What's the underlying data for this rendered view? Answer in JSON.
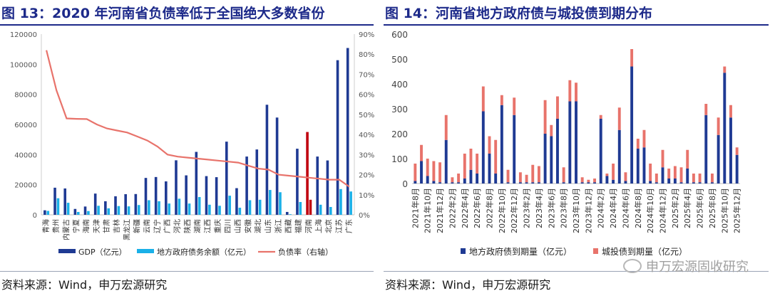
{
  "left_panel": {
    "title": "图 13：2020 年河南省负债率低于全国绝大多数省份",
    "source": "资料来源：Wind，申万宏源研究"
  },
  "right_panel": {
    "title": "图 14：河南省地方政府债与城投债到期分布",
    "source": "资料来源：Wind，申万宏源研究",
    "watermark": "申万宏源固收研究"
  },
  "colors": {
    "title": "#1d2a8a",
    "gdp": "#1f3a93",
    "debt": "#1ab0e8",
    "ratio": "#e8736b",
    "highlight": "#c0000f",
    "local": "#1f3a93",
    "chengtou": "#e8736b"
  },
  "chart_data": [
    {
      "type": "bar",
      "categories": [
        "青海",
        "贵州",
        "内蒙古",
        "宁夏",
        "海南",
        "天津",
        "甘肃",
        "吉林",
        "黑龙江",
        "新疆",
        "云南",
        "辽宁",
        "广西",
        "河北",
        "陕西",
        "湖南",
        "江西",
        "重庆",
        "四川",
        "山西",
        "安徽",
        "湖北",
        "山东",
        "浙江",
        "西藏",
        "福建",
        "河南",
        "上海",
        "北京",
        "江苏",
        "广东"
      ],
      "series": [
        {
          "name": "GDP（亿元）",
          "axis": "left",
          "type": "bar",
          "values": [
            3000,
            18000,
            17500,
            3900,
            5500,
            14100,
            9000,
            12300,
            13700,
            13800,
            24500,
            25100,
            22200,
            36200,
            26200,
            41800,
            25700,
            25000,
            48600,
            17700,
            38700,
            43400,
            73100,
            64600,
            1900,
            43900,
            54997,
            38700,
            36100,
            102700,
            110800
          ]
        },
        {
          "name": "地方政府债务余额（亿元）",
          "axis": "left",
          "type": "bar",
          "values": [
            2600,
            11000,
            8000,
            1900,
            2500,
            6000,
            4300,
            5800,
            5600,
            6500,
            9700,
            9000,
            7500,
            10700,
            7500,
            11800,
            6700,
            6000,
            12700,
            4700,
            9700,
            10000,
            16500,
            15000,
            400,
            8500,
            10000,
            6700,
            5200,
            17100,
            15500
          ]
        },
        {
          "name": "负债率（右轴）",
          "axis": "right",
          "type": "line",
          "values": [
            82,
            62,
            48,
            47.8,
            47.7,
            45,
            43,
            42,
            41,
            39,
            37,
            34,
            30,
            29,
            28.5,
            28,
            27.5,
            27,
            26.5,
            26,
            24.5,
            23,
            22.5,
            20,
            19.5,
            19,
            18.5,
            18,
            17.5,
            17.5,
            14
          ]
        }
      ],
      "highlight_category": "河南",
      "y_left": {
        "min": 0,
        "max": 120000,
        "ticks": [
          0,
          20000,
          40000,
          60000,
          80000,
          100000,
          120000
        ]
      },
      "y_right": {
        "min": 0,
        "max": 90,
        "ticks": [
          "0%",
          "10%",
          "20%",
          "30%",
          "40%",
          "50%",
          "60%",
          "70%",
          "80%",
          "90%"
        ]
      },
      "legend_position": "bottom"
    },
    {
      "type": "bar",
      "stacked": true,
      "categories": [
        "2021年8月",
        "2021年9月",
        "2021年10月",
        "2021年11月",
        "2021年12月",
        "2022年1月",
        "2022年2月",
        "2022年3月",
        "2022年4月",
        "2022年5月",
        "2022年6月",
        "2022年7月",
        "2022年8月",
        "2022年9月",
        "2022年10月",
        "2022年11月",
        "2022年12月",
        "2023年1月",
        "2023年2月",
        "2023年3月",
        "2023年4月",
        "2023年5月",
        "2023年6月",
        "2023年7月",
        "2023年8月",
        "2023年9月",
        "2023年10月",
        "2023年11月",
        "2023年12月",
        "2024年1月",
        "2024年2月",
        "2024年3月",
        "2024年4月",
        "2024年5月",
        "2024年6月",
        "2024年7月",
        "2024年8月",
        "2024年9月",
        "2024年10月",
        "2024年11月",
        "2024年12月",
        "2025年1月",
        "2025年2月",
        "2025年3月",
        "2025年4月",
        "2025年5月",
        "2025年6月",
        "2025年7月",
        "2025年8月",
        "2025年9月",
        "2025年10月",
        "2025年11月",
        "2025年12月"
      ],
      "x_tick_labels": [
        "2021年8月",
        "2021年10月",
        "2021年12月",
        "2022年2月",
        "2022年4月",
        "2022年6月",
        "2022年8月",
        "2022年10月",
        "2022年12月",
        "2023年2月",
        "2023年4月",
        "2023年6月",
        "2023年8月",
        "2023年10月",
        "2023年12月",
        "2024年2月",
        "2024年4月",
        "2024年6月",
        "2024年8月",
        "2024年10月",
        "2024年12月",
        "2025年2月",
        "2025年4月",
        "2025年6月",
        "2025年8月",
        "2025年10月",
        "2025年12月"
      ],
      "series": [
        {
          "name": "地方政府债到期量（亿元）",
          "values": [
            10,
            90,
            30,
            10,
            5,
            175,
            5,
            5,
            20,
            55,
            40,
            290,
            120,
            40,
            315,
            5,
            275,
            5,
            5,
            5,
            5,
            200,
            190,
            260,
            5,
            330,
            330,
            5,
            5,
            5,
            260,
            30,
            15,
            215,
            10,
            470,
            140,
            145,
            10,
            5,
            65,
            20,
            20,
            5,
            60,
            5,
            5,
            275,
            5,
            195,
            445,
            265,
            115
          ]
        },
        {
          "name": "城投债到期量（亿元）",
          "values": [
            70,
            65,
            70,
            80,
            80,
            100,
            20,
            35,
            100,
            85,
            80,
            100,
            70,
            135,
            40,
            50,
            70,
            40,
            30,
            70,
            65,
            135,
            45,
            90,
            60,
            85,
            75,
            20,
            10,
            15,
            15,
            10,
            65,
            90,
            35,
            70,
            40,
            70,
            70,
            35,
            70,
            40,
            50,
            60,
            75,
            35,
            35,
            45,
            35,
            70,
            25,
            50,
            30
          ]
        }
      ],
      "y": {
        "min": 0,
        "max": 600,
        "ticks": [
          0,
          100,
          200,
          300,
          400,
          500,
          600
        ]
      },
      "legend_position": "bottom"
    }
  ]
}
